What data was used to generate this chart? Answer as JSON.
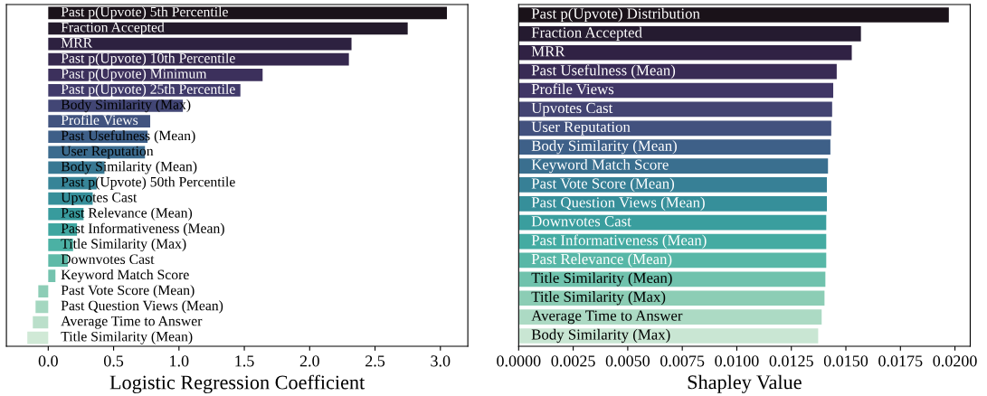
{
  "chart_data": [
    {
      "type": "bar",
      "orientation": "horizontal",
      "xlabel": "Logistic Regression Coefficient",
      "tick_labels": "x",
      "grid": false,
      "categories": [
        "Past p(Upvote) 5th Percentile",
        "Fraction Accepted",
        "MRR",
        "Past p(Upvote) 10th Percentile",
        "Past p(Upvote) Minimum",
        "Past p(Upvote) 25th Percentile",
        "Body Similarity (Max)",
        "Profile Views",
        "Past Usefulness (Mean)",
        "User Reputation",
        "Body Similarity (Mean)",
        "Past p(Upvote) 50th Percentile",
        "Upvotes Cast",
        "Past Relevance (Mean)",
        "Past Informativeness (Mean)",
        "Title Similarity (Max)",
        "Downvotes Cast",
        "Keyword Match Score",
        "Past Vote Score (Mean)",
        "Past Question Views (Mean)",
        "Average Time to Answer",
        "Title Similarity (Mean)"
      ],
      "values": [
        3.05,
        2.75,
        2.32,
        2.3,
        1.64,
        1.47,
        1.03,
        0.78,
        0.76,
        0.74,
        0.43,
        0.37,
        0.34,
        0.27,
        0.22,
        0.19,
        0.15,
        0.055,
        -0.076,
        -0.097,
        -0.118,
        -0.16
      ],
      "colors": [
        "#1a1219",
        "#231a2b",
        "#2d2140",
        "#35284e",
        "#3c305c",
        "#403a6a",
        "#424675",
        "#41537f",
        "#3e5f88",
        "#3b6b8e",
        "#387893",
        "#378497",
        "#368f9a",
        "#389b9d",
        "#3fa6a0",
        "#4bb1a4",
        "#5fbaa8",
        "#74c3ae",
        "#8dcdb6",
        "#a4d7c0",
        "#badfca",
        "#d0e9d6"
      ],
      "xlim": [
        -0.32,
        3.21
      ],
      "xticks": [
        {
          "value": 0,
          "label": "0.0"
        },
        {
          "value": 0.5,
          "label": "0.5"
        },
        {
          "value": 1,
          "label": "1.0"
        },
        {
          "value": 1.5,
          "label": "1.5"
        },
        {
          "value": 2,
          "label": "2.0"
        },
        {
          "value": 2.5,
          "label": "2.5"
        },
        {
          "value": 3,
          "label": "3.0"
        }
      ]
    },
    {
      "type": "bar",
      "orientation": "horizontal",
      "xlabel": "Shapley Value",
      "tick_labels": "x",
      "grid": false,
      "categories": [
        "Past p(Upvote) Distribution",
        "Fraction Accepted",
        "MRR",
        "Past Usefulness (Mean)",
        "Profile Views",
        "Upvotes Cast",
        "User Reputation",
        "Body Similarity (Mean)",
        "Keyword Match Score",
        "Past Vote Score (Mean)",
        "Past Question Views (Mean)",
        "Downvotes Cast",
        "Past Informativeness (Mean)",
        "Past Relevance (Mean)",
        "Title Similarity (Mean)",
        "Title Similarity (Max)",
        "Average Time to Answer",
        "Body Similarity (Max)"
      ],
      "values": [
        0.01972,
        0.01569,
        0.01527,
        0.01458,
        0.01442,
        0.01437,
        0.01433,
        0.01429,
        0.01418,
        0.01413,
        0.01413,
        0.0141,
        0.0141,
        0.0141,
        0.01406,
        0.01402,
        0.01389,
        0.01373
      ],
      "colors": [
        "#1a1219",
        "#251b30",
        "#302244",
        "#392b55",
        "#403666",
        "#434472",
        "#42517e",
        "#3e6088",
        "#3a6f8f",
        "#378096",
        "#368f9a",
        "#3a9e9e",
        "#44aba2",
        "#57b7a7",
        "#70c2ad",
        "#8ccdb5",
        "#acdac4",
        "#c9e6d3"
      ],
      "xlim": [
        0,
        0.0207
      ],
      "xticks": [
        {
          "value": 0,
          "label": "0.0000"
        },
        {
          "value": 0.0025,
          "label": "0.0025"
        },
        {
          "value": 0.005,
          "label": "0.0050"
        },
        {
          "value": 0.0075,
          "label": "0.0075"
        },
        {
          "value": 0.01,
          "label": "0.0100"
        },
        {
          "value": 0.0125,
          "label": "0.0125"
        },
        {
          "value": 0.015,
          "label": "0.0150"
        },
        {
          "value": 0.0175,
          "label": "0.0175"
        },
        {
          "value": 0.02,
          "label": "0.0200"
        }
      ]
    }
  ]
}
